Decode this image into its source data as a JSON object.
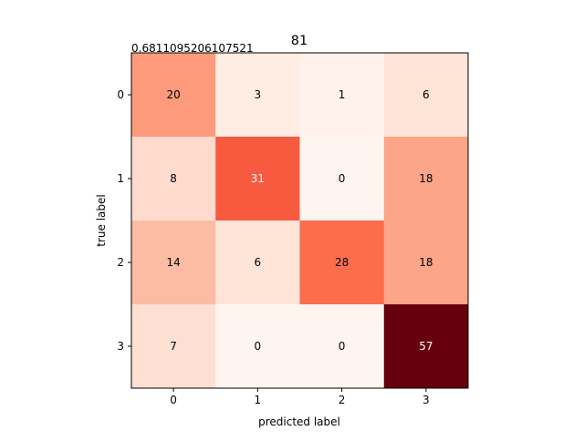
{
  "chart_data": {
    "type": "heatmap",
    "title": "81",
    "annotation": "0.6811095206107521",
    "xlabel": "predicted label",
    "ylabel": "true label",
    "x_tick_labels": [
      "0",
      "1",
      "2",
      "3"
    ],
    "y_tick_labels": [
      "0",
      "1",
      "2",
      "3"
    ],
    "values": [
      [
        20,
        3,
        1,
        6
      ],
      [
        8,
        31,
        0,
        18
      ],
      [
        14,
        6,
        28,
        18
      ],
      [
        7,
        0,
        0,
        57
      ]
    ],
    "colormap": "Reds",
    "text_color_dark": "#000000",
    "text_color_light": "#ffffff"
  }
}
